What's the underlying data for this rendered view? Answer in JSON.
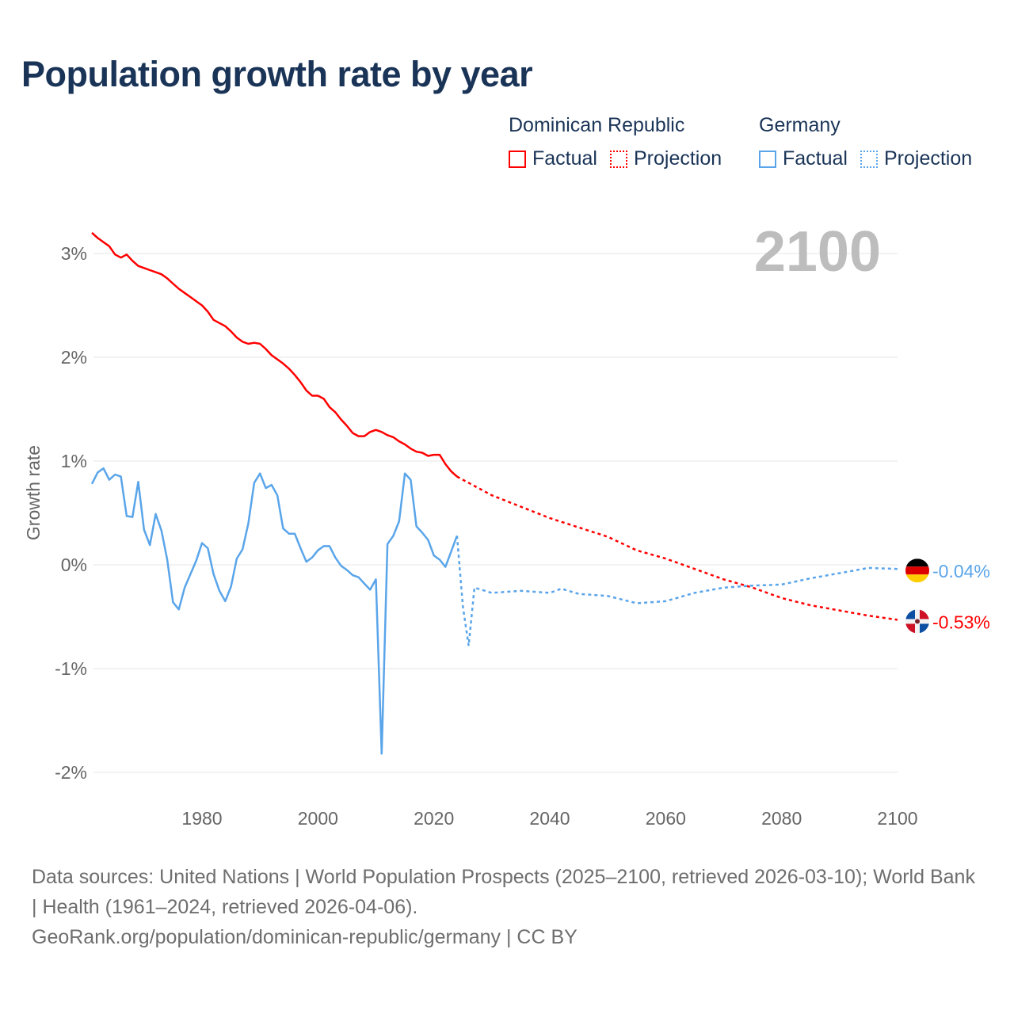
{
  "title": "Population growth rate by year",
  "legend": {
    "groups": [
      {
        "name": "Dominican Republic",
        "color": "#ff0000",
        "factual": "Factual",
        "projection": "Projection"
      },
      {
        "name": "Germany",
        "color": "#5aa5ea",
        "factual": "Factual",
        "projection": "Projection"
      }
    ]
  },
  "footer": {
    "line1": "Data sources: United Nations | World Population Prospects (2025–2100, retrieved 2026-03-10); World Bank | Health (1961–2024, retrieved 2026-04-06).",
    "line2": "GeoRank.org/population/dominican-republic/germany | CC BY"
  },
  "chart_data": {
    "type": "line",
    "title": "Population growth rate by year",
    "xlabel": "",
    "ylabel": "Growth rate",
    "year_label": "2100",
    "xlim": [
      1961,
      2100
    ],
    "ylim": [
      -2.2,
      3.3
    ],
    "x_ticks": [
      1980,
      2000,
      2020,
      2040,
      2060,
      2080,
      2100
    ],
    "y_ticks": [
      3,
      2,
      1,
      0,
      -1,
      -2
    ],
    "y_tick_labels": [
      "3%",
      "2%",
      "1%",
      "0%",
      "-1%",
      "-2%"
    ],
    "grid": true,
    "series": [
      {
        "name": "Dominican Republic",
        "color": "#ff0000",
        "end_label": "-0.53%",
        "factual": {
          "x_start": 1961,
          "values": [
            3.2,
            3.15,
            3.11,
            3.07,
            2.99,
            2.96,
            2.99,
            2.93,
            2.88,
            2.86,
            2.84,
            2.82,
            2.8,
            2.76,
            2.71,
            2.66,
            2.62,
            2.58,
            2.54,
            2.5,
            2.44,
            2.36,
            2.33,
            2.3,
            2.25,
            2.19,
            2.15,
            2.13,
            2.14,
            2.13,
            2.08,
            2.02,
            1.98,
            1.94,
            1.89,
            1.83,
            1.76,
            1.68,
            1.63,
            1.63,
            1.6,
            1.52,
            1.47,
            1.4,
            1.34,
            1.27,
            1.24,
            1.24,
            1.28,
            1.3,
            1.28,
            1.25,
            1.23,
            1.19,
            1.16,
            1.12,
            1.09,
            1.08,
            1.05,
            1.06,
            1.06,
            0.97,
            0.9,
            0.85
          ]
        },
        "projection": {
          "x": [
            2024,
            2025,
            2030,
            2035,
            2040,
            2045,
            2050,
            2055,
            2060,
            2065,
            2070,
            2075,
            2080,
            2085,
            2090,
            2095,
            2100
          ],
          "values": [
            0.85,
            0.82,
            0.67,
            0.56,
            0.45,
            0.36,
            0.27,
            0.14,
            0.06,
            -0.04,
            -0.14,
            -0.22,
            -0.32,
            -0.39,
            -0.44,
            -0.49,
            -0.53
          ]
        }
      },
      {
        "name": "Germany",
        "color": "#5aa5ea",
        "end_label": "-0.04%",
        "factual": {
          "x_start": 1961,
          "values": [
            0.78,
            0.89,
            0.93,
            0.82,
            0.87,
            0.85,
            0.47,
            0.46,
            0.8,
            0.34,
            0.19,
            0.49,
            0.33,
            0.05,
            -0.36,
            -0.43,
            -0.22,
            -0.09,
            0.04,
            0.21,
            0.16,
            -0.09,
            -0.25,
            -0.35,
            -0.21,
            0.06,
            0.15,
            0.4,
            0.79,
            0.88,
            0.74,
            0.77,
            0.67,
            0.35,
            0.3,
            0.3,
            0.16,
            0.03,
            0.07,
            0.14,
            0.18,
            0.18,
            0.07,
            -0.01,
            -0.05,
            -0.1,
            -0.12,
            -0.18,
            -0.24,
            -0.14,
            -1.82,
            0.2,
            0.28,
            0.42,
            0.88,
            0.82,
            0.37,
            0.31,
            0.24,
            0.09,
            0.05,
            -0.02,
            0.13,
            0.28
          ]
        },
        "projection": {
          "x": [
            2024,
            2025,
            2026,
            2027,
            2030,
            2035,
            2040,
            2042,
            2045,
            2050,
            2055,
            2060,
            2065,
            2070,
            2075,
            2080,
            2085,
            2090,
            2095,
            2100
          ],
          "values": [
            0.28,
            -0.4,
            -0.78,
            -0.22,
            -0.27,
            -0.25,
            -0.27,
            -0.23,
            -0.28,
            -0.3,
            -0.37,
            -0.35,
            -0.27,
            -0.22,
            -0.2,
            -0.19,
            -0.13,
            -0.08,
            -0.03,
            -0.04
          ]
        }
      }
    ]
  }
}
